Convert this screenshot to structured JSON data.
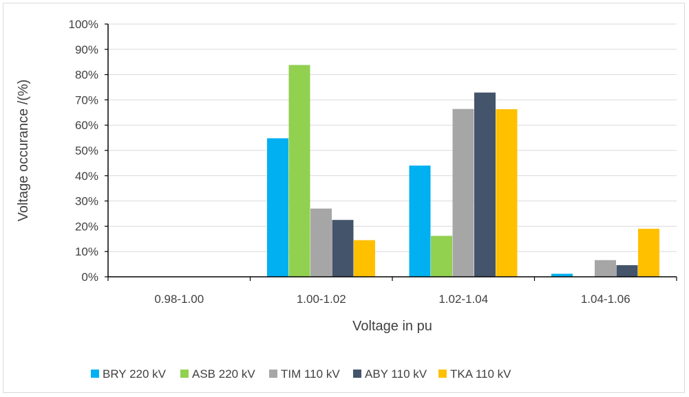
{
  "chart_data": {
    "type": "bar",
    "title": "",
    "xlabel": "Voltage in pu",
    "ylabel": "Voltage occurance /(%)",
    "categories": [
      "0.98-1.00",
      "1.00-1.02",
      "1.02-1.04",
      "1.04-1.06"
    ],
    "ylim": [
      0,
      100
    ],
    "yticks": [
      "0%",
      "10%",
      "20%",
      "30%",
      "40%",
      "50%",
      "60%",
      "70%",
      "80%",
      "90%",
      "100%"
    ],
    "grid": true,
    "legend_position": "bottom",
    "series": [
      {
        "name": "BRY 220 kV",
        "color": "#00b0f0",
        "values": [
          0,
          54.8,
          44.0,
          1.2
        ]
      },
      {
        "name": "ASB 220 kV",
        "color": "#92d050",
        "values": [
          0,
          83.8,
          16.2,
          0
        ]
      },
      {
        "name": "TIM 110 kV",
        "color": "#a6a6a6",
        "values": [
          0,
          27.0,
          66.4,
          6.6
        ]
      },
      {
        "name": "ABY 110 kV",
        "color": "#44546a",
        "values": [
          0,
          22.5,
          72.9,
          4.6
        ]
      },
      {
        "name": "TKA 110 kV",
        "color": "#ffc000",
        "values": [
          0,
          14.5,
          66.3,
          19.0
        ]
      }
    ]
  }
}
